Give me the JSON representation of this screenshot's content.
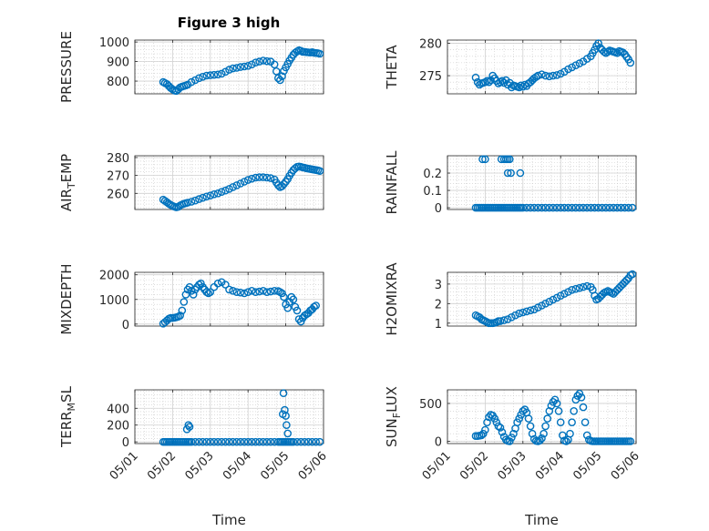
{
  "figure_title": "Figure 3 high",
  "colors": {
    "marker": "#0072BD",
    "axis": "#262626",
    "background": "#ffffff"
  },
  "chart_data": [
    {
      "type": "scatter",
      "ylabel": "PRESSURE",
      "ylim": [
        735,
        1010
      ],
      "yticks": [
        800,
        900,
        1000
      ],
      "xlim": [
        "05/01",
        "05/06"
      ],
      "xticks": [
        "05/01",
        "05/02",
        "05/03",
        "05/04",
        "05/05",
        "05/06"
      ],
      "xticks_visible": false,
      "grid": true,
      "x": [
        1.75,
        1.8,
        1.85,
        1.9,
        1.95,
        2.0,
        2.05,
        2.1,
        2.15,
        2.2,
        2.25,
        2.3,
        2.35,
        2.4,
        2.5,
        2.6,
        2.7,
        2.8,
        2.9,
        3.0,
        3.1,
        3.2,
        3.3,
        3.4,
        3.5,
        3.6,
        3.7,
        3.8,
        3.9,
        4.0,
        4.1,
        4.2,
        4.3,
        4.4,
        4.5,
        4.6,
        4.7,
        4.75,
        4.8,
        4.85,
        4.9,
        4.95,
        5.0,
        5.05,
        5.1,
        5.15,
        5.2,
        5.25,
        5.3,
        5.35,
        5.4,
        5.45,
        5.5,
        5.55,
        5.6,
        5.65,
        5.7,
        5.75,
        5.8,
        5.85,
        5.9
      ],
      "y": [
        795,
        790,
        785,
        775,
        765,
        758,
        752,
        750,
        758,
        768,
        772,
        775,
        778,
        782,
        795,
        805,
        815,
        822,
        828,
        830,
        832,
        834,
        838,
        848,
        858,
        865,
        868,
        872,
        875,
        878,
        885,
        895,
        900,
        905,
        902,
        900,
        885,
        850,
        815,
        805,
        825,
        852,
        870,
        888,
        905,
        920,
        935,
        945,
        952,
        958,
        955,
        950,
        950,
        948,
        947,
        946,
        948,
        945,
        944,
        943,
        940
      ]
    },
    {
      "type": "scatter",
      "ylabel": "THETA",
      "ylim": [
        272.2,
        280.5
      ],
      "yticks": [
        275,
        280
      ],
      "xlim": [
        "05/01",
        "05/06"
      ],
      "xticks": [
        "05/01",
        "05/02",
        "05/03",
        "05/04",
        "05/05",
        "05/06"
      ],
      "xticks_visible": false,
      "grid": true,
      "x": [
        1.75,
        1.8,
        1.85,
        1.9,
        1.95,
        2.0,
        2.05,
        2.1,
        2.15,
        2.2,
        2.25,
        2.3,
        2.35,
        2.4,
        2.45,
        2.5,
        2.55,
        2.6,
        2.65,
        2.7,
        2.75,
        2.8,
        2.85,
        2.9,
        2.95,
        3.0,
        3.05,
        3.1,
        3.15,
        3.2,
        3.25,
        3.3,
        3.35,
        3.4,
        3.5,
        3.6,
        3.7,
        3.8,
        3.9,
        4.0,
        4.1,
        4.2,
        4.3,
        4.4,
        4.5,
        4.6,
        4.7,
        4.8,
        4.85,
        4.9,
        4.95,
        5.0,
        5.05,
        5.1,
        5.15,
        5.2,
        5.25,
        5.3,
        5.35,
        5.4,
        5.45,
        5.5,
        5.55,
        5.6,
        5.65,
        5.7,
        5.75,
        5.8,
        5.85
      ],
      "y": [
        274.7,
        274.0,
        273.6,
        273.8,
        273.9,
        274.0,
        274.2,
        274.0,
        274.3,
        275.0,
        274.6,
        274.2,
        273.8,
        274.0,
        274.2,
        273.9,
        274.3,
        273.6,
        273.9,
        273.2,
        273.5,
        273.4,
        273.3,
        273.2,
        273.5,
        273.3,
        273.6,
        273.4,
        273.8,
        274.0,
        274.3,
        274.6,
        274.8,
        275.0,
        275.2,
        275.0,
        274.9,
        275.0,
        275.1,
        275.3,
        275.6,
        276.0,
        276.3,
        276.6,
        276.9,
        277.2,
        277.6,
        278.0,
        278.5,
        279.0,
        279.6,
        280.0,
        279.3,
        279.0,
        278.7,
        278.5,
        278.7,
        278.9,
        278.8,
        278.7,
        278.6,
        278.5,
        278.8,
        278.7,
        278.6,
        278.3,
        277.9,
        277.5,
        277.0
      ]
    },
    {
      "type": "scatter",
      "ylabel": "AIR_TEMP",
      "ylim": [
        251,
        281
      ],
      "yticks": [
        260,
        270,
        280
      ],
      "xlim": [
        "05/01",
        "05/06"
      ],
      "xticks": [
        "05/01",
        "05/02",
        "05/03",
        "05/04",
        "05/05",
        "05/06"
      ],
      "xticks_visible": false,
      "grid": true,
      "x": [
        1.75,
        1.8,
        1.85,
        1.9,
        1.95,
        2.0,
        2.05,
        2.1,
        2.15,
        2.2,
        2.25,
        2.3,
        2.35,
        2.4,
        2.5,
        2.6,
        2.7,
        2.8,
        2.9,
        3.0,
        3.1,
        3.2,
        3.3,
        3.4,
        3.5,
        3.6,
        3.7,
        3.8,
        3.9,
        4.0,
        4.1,
        4.2,
        4.3,
        4.4,
        4.5,
        4.6,
        4.7,
        4.75,
        4.8,
        4.85,
        4.9,
        4.95,
        5.0,
        5.05,
        5.1,
        5.15,
        5.2,
        5.25,
        5.3,
        5.35,
        5.4,
        5.45,
        5.5,
        5.55,
        5.6,
        5.65,
        5.7,
        5.75,
        5.8,
        5.85,
        5.9
      ],
      "y": [
        256.5,
        255.8,
        255.0,
        254.2,
        253.6,
        253.0,
        252.6,
        252.2,
        252.5,
        253.3,
        253.8,
        254.2,
        254.5,
        254.8,
        255.3,
        256.0,
        256.8,
        257.5,
        258.2,
        258.8,
        259.5,
        260.0,
        260.8,
        261.6,
        262.5,
        263.5,
        264.5,
        265.5,
        266.5,
        267.5,
        268.2,
        268.8,
        269.0,
        269.0,
        268.8,
        268.5,
        267.8,
        266.0,
        264.5,
        263.5,
        264.0,
        265.2,
        266.5,
        268.0,
        269.8,
        271.5,
        273.0,
        274.0,
        274.8,
        275.0,
        274.8,
        274.5,
        274.3,
        274.0,
        273.8,
        273.6,
        273.4,
        273.2,
        273.0,
        272.8,
        272.5
      ]
    },
    {
      "type": "scatter",
      "ylabel": "RAINFALL",
      "ylim": [
        -0.01,
        0.3
      ],
      "yticks": [
        0,
        0.1,
        0.2
      ],
      "xlim": [
        "05/01",
        "05/06"
      ],
      "xticks": [
        "05/01",
        "05/02",
        "05/03",
        "05/04",
        "05/05",
        "05/06"
      ],
      "xticks_visible": false,
      "grid": true,
      "x": [
        1.75,
        1.8,
        1.85,
        1.9,
        1.95,
        2.0,
        2.05,
        2.1,
        2.15,
        2.2,
        2.25,
        2.3,
        2.35,
        2.4,
        2.45,
        2.5,
        2.55,
        2.6,
        2.65,
        2.7,
        2.75,
        2.8,
        2.85,
        2.9,
        2.95,
        3.0,
        3.1,
        3.2,
        3.3,
        3.4,
        3.5,
        3.6,
        3.7,
        3.8,
        3.9,
        4.0,
        4.1,
        4.2,
        4.3,
        4.4,
        4.5,
        4.6,
        4.7,
        4.8,
        4.9,
        5.0,
        5.1,
        5.2,
        5.3,
        5.4,
        5.5,
        5.6,
        5.7,
        5.8,
        5.9,
        1.93,
        2.0,
        2.43,
        2.5,
        2.55,
        2.6,
        2.65,
        2.6,
        2.68,
        2.93
      ],
      "y": [
        0,
        0,
        0,
        0,
        0,
        0,
        0,
        0,
        0,
        0,
        0,
        0,
        0,
        0,
        0,
        0,
        0,
        0,
        0,
        0,
        0,
        0,
        0,
        0,
        0,
        0,
        0,
        0,
        0,
        0,
        0,
        0,
        0,
        0,
        0,
        0,
        0,
        0,
        0,
        0,
        0,
        0,
        0,
        0,
        0,
        0,
        0,
        0,
        0,
        0,
        0,
        0,
        0,
        0,
        0,
        0.28,
        0.28,
        0.28,
        0.28,
        0.28,
        0.28,
        0.28,
        0.2,
        0.2,
        0.2
      ]
    },
    {
      "type": "scatter",
      "ylabel": "MIXDEPTH",
      "ylim": [
        -80,
        2100
      ],
      "yticks": [
        0,
        1000,
        2000
      ],
      "xlim": [
        "05/01",
        "05/06"
      ],
      "xticks": [
        "05/01",
        "05/02",
        "05/03",
        "05/04",
        "05/05",
        "05/06"
      ],
      "xticks_visible": false,
      "grid": true,
      "x": [
        1.75,
        1.8,
        1.85,
        1.9,
        1.95,
        2.0,
        2.05,
        2.1,
        2.15,
        2.2,
        2.25,
        2.3,
        2.35,
        2.4,
        2.45,
        2.5,
        2.55,
        2.6,
        2.65,
        2.7,
        2.75,
        2.8,
        2.85,
        2.9,
        2.95,
        3.0,
        3.1,
        3.2,
        3.3,
        3.4,
        3.5,
        3.6,
        3.7,
        3.8,
        3.9,
        4.0,
        4.1,
        4.2,
        4.3,
        4.4,
        4.5,
        4.6,
        4.7,
        4.8,
        4.85,
        4.9,
        4.95,
        5.0,
        5.05,
        5.1,
        5.15,
        5.2,
        5.25,
        5.3,
        5.35,
        5.4,
        5.45,
        5.5,
        5.55,
        5.6,
        5.65,
        5.7,
        5.75,
        5.8
      ],
      "y": [
        20,
        80,
        150,
        220,
        250,
        250,
        260,
        280,
        300,
        350,
        550,
        900,
        1200,
        1400,
        1500,
        1350,
        1200,
        1400,
        1500,
        1600,
        1650,
        1500,
        1400,
        1300,
        1250,
        1300,
        1500,
        1650,
        1700,
        1600,
        1400,
        1350,
        1300,
        1280,
        1250,
        1300,
        1350,
        1300,
        1320,
        1350,
        1300,
        1320,
        1350,
        1340,
        1300,
        1250,
        1100,
        800,
        650,
        900,
        1100,
        1000,
        700,
        550,
        200,
        100,
        250,
        350,
        400,
        450,
        550,
        600,
        700,
        750
      ]
    },
    {
      "type": "scatter",
      "ylabel": "H2OMIXRA",
      "ylim": [
        0.85,
        3.6
      ],
      "yticks": [
        1,
        2,
        3
      ],
      "xlim": [
        "05/01",
        "05/06"
      ],
      "xticks": [
        "05/01",
        "05/02",
        "05/03",
        "05/04",
        "05/05",
        "05/06"
      ],
      "xticks_visible": false,
      "grid": true,
      "x": [
        1.75,
        1.8,
        1.85,
        1.9,
        1.95,
        2.0,
        2.05,
        2.1,
        2.15,
        2.2,
        2.25,
        2.3,
        2.35,
        2.4,
        2.5,
        2.6,
        2.7,
        2.8,
        2.9,
        3.0,
        3.1,
        3.2,
        3.3,
        3.4,
        3.5,
        3.6,
        3.7,
        3.8,
        3.9,
        4.0,
        4.1,
        4.2,
        4.3,
        4.4,
        4.5,
        4.6,
        4.7,
        4.8,
        4.85,
        4.9,
        4.95,
        5.0,
        5.05,
        5.1,
        5.15,
        5.2,
        5.25,
        5.3,
        5.35,
        5.4,
        5.45,
        5.5,
        5.55,
        5.6,
        5.65,
        5.7,
        5.75,
        5.8,
        5.85,
        5.9
      ],
      "y": [
        1.4,
        1.35,
        1.3,
        1.2,
        1.15,
        1.1,
        1.05,
        1.0,
        1.0,
        1.0,
        1.02,
        1.05,
        1.1,
        1.1,
        1.15,
        1.2,
        1.3,
        1.4,
        1.5,
        1.55,
        1.6,
        1.65,
        1.7,
        1.8,
        1.9,
        2.0,
        2.1,
        2.2,
        2.3,
        2.4,
        2.5,
        2.6,
        2.7,
        2.75,
        2.8,
        2.85,
        2.9,
        2.85,
        2.7,
        2.4,
        2.2,
        2.25,
        2.35,
        2.45,
        2.55,
        2.6,
        2.65,
        2.6,
        2.55,
        2.5,
        2.6,
        2.7,
        2.8,
        2.9,
        3.0,
        3.1,
        3.2,
        3.3,
        3.45,
        3.5
      ]
    },
    {
      "type": "scatter",
      "ylabel": "TERR_MSL",
      "ylim": [
        -20,
        620
      ],
      "yticks": [
        0,
        200,
        400
      ],
      "xlim": [
        "05/01",
        "05/06"
      ],
      "xticks": [
        "05/01",
        "05/02",
        "05/03",
        "05/04",
        "05/05",
        "05/06"
      ],
      "xtick_rotation": 45,
      "xlabel": "Time",
      "grid": true,
      "x": [
        1.75,
        1.8,
        1.85,
        1.9,
        1.95,
        2.0,
        2.05,
        2.1,
        2.15,
        2.2,
        2.25,
        2.3,
        2.35,
        2.4,
        2.45,
        2.5,
        2.6,
        2.7,
        2.8,
        2.9,
        3.0,
        3.1,
        3.2,
        3.3,
        3.4,
        3.5,
        3.6,
        3.7,
        3.8,
        3.9,
        4.0,
        4.1,
        4.2,
        4.3,
        4.4,
        4.5,
        4.6,
        4.7,
        4.8,
        4.85,
        4.9,
        4.95,
        5.0,
        5.05,
        5.1,
        5.15,
        5.2,
        5.3,
        5.4,
        5.5,
        5.6,
        5.7,
        5.8,
        5.9,
        2.38,
        2.42,
        2.45,
        4.92,
        4.94,
        4.97,
        5.0,
        5.02,
        5.05
      ],
      "y": [
        0,
        0,
        0,
        0,
        0,
        0,
        0,
        0,
        0,
        0,
        0,
        0,
        0,
        0,
        0,
        0,
        0,
        0,
        0,
        0,
        0,
        0,
        0,
        0,
        0,
        0,
        0,
        0,
        0,
        0,
        0,
        0,
        0,
        0,
        0,
        0,
        0,
        0,
        0,
        0,
        0,
        0,
        0,
        0,
        0,
        0,
        0,
        0,
        0,
        0,
        0,
        0,
        0,
        0,
        150,
        200,
        180,
        330,
        580,
        380,
        310,
        200,
        100
      ]
    },
    {
      "type": "scatter",
      "ylabel": "SUN_FLUX",
      "ylim": [
        -30,
        680
      ],
      "yticks": [
        0,
        500
      ],
      "xlim": [
        "05/01",
        "05/06"
      ],
      "xticks": [
        "05/01",
        "05/02",
        "05/03",
        "05/04",
        "05/05",
        "05/06"
      ],
      "xtick_rotation": 45,
      "xlabel": "Time",
      "grid": true,
      "x": [
        1.75,
        1.8,
        1.85,
        1.9,
        1.95,
        2.0,
        2.05,
        2.1,
        2.15,
        2.2,
        2.25,
        2.3,
        2.35,
        2.4,
        2.45,
        2.5,
        2.55,
        2.6,
        2.65,
        2.7,
        2.75,
        2.8,
        2.85,
        2.9,
        2.95,
        3.0,
        3.05,
        3.1,
        3.15,
        3.2,
        3.25,
        3.3,
        3.35,
        3.4,
        3.45,
        3.5,
        3.55,
        3.6,
        3.65,
        3.7,
        3.75,
        3.8,
        3.85,
        3.9,
        3.95,
        4.0,
        4.05,
        4.1,
        4.15,
        4.2,
        4.25,
        4.3,
        4.35,
        4.4,
        4.45,
        4.5,
        4.55,
        4.6,
        4.65,
        4.7,
        4.75,
        4.8,
        4.85,
        4.9,
        4.95,
        5.0,
        5.05,
        5.1,
        5.15,
        5.2,
        5.25,
        5.3,
        5.35,
        5.4,
        5.45,
        5.5,
        5.55,
        5.6,
        5.65,
        5.7,
        5.75,
        5.8,
        5.85
      ],
      "y": [
        70,
        70,
        75,
        80,
        100,
        150,
        250,
        320,
        350,
        340,
        300,
        250,
        200,
        180,
        120,
        60,
        20,
        5,
        0,
        50,
        100,
        170,
        250,
        300,
        350,
        400,
        420,
        380,
        300,
        200,
        100,
        30,
        5,
        0,
        10,
        40,
        100,
        200,
        300,
        400,
        470,
        520,
        550,
        500,
        400,
        250,
        80,
        10,
        0,
        20,
        100,
        250,
        400,
        550,
        600,
        630,
        580,
        450,
        250,
        80,
        20,
        5,
        0,
        0,
        0,
        0,
        0,
        0,
        0,
        0,
        0,
        0,
        0,
        0,
        0,
        0,
        0,
        0,
        0,
        0,
        0,
        0,
        0
      ]
    }
  ]
}
